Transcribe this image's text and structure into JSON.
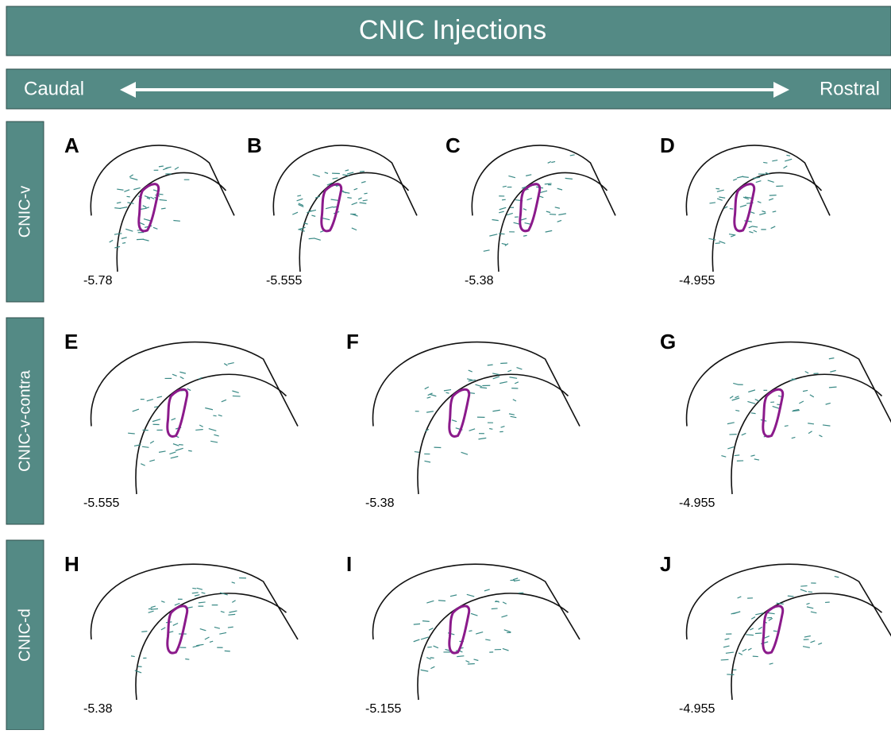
{
  "header": {
    "title": "CNIC Injections"
  },
  "axis": {
    "left": "Caudal",
    "right": "Rostral"
  },
  "rows": [
    {
      "label": "CNIC-v",
      "panels": [
        {
          "letter": "A",
          "value": "-5.78"
        },
        {
          "letter": "B",
          "value": "-5.555"
        },
        {
          "letter": "C",
          "value": "-5.38"
        },
        {
          "letter": "D",
          "value": "-4.955"
        }
      ]
    },
    {
      "label": "CNIC-v-contra",
      "panels": [
        {
          "letter": "E",
          "value": "-5.555"
        },
        {
          "letter": "F",
          "value": "-5.38"
        },
        {
          "letter": "G",
          "value": "-4.955"
        }
      ]
    },
    {
      "label": "CNIC-d",
      "panels": [
        {
          "letter": "H",
          "value": "-5.38"
        },
        {
          "letter": "I",
          "value": "-5.155"
        },
        {
          "letter": "J",
          "value": "-4.955"
        }
      ]
    }
  ]
}
